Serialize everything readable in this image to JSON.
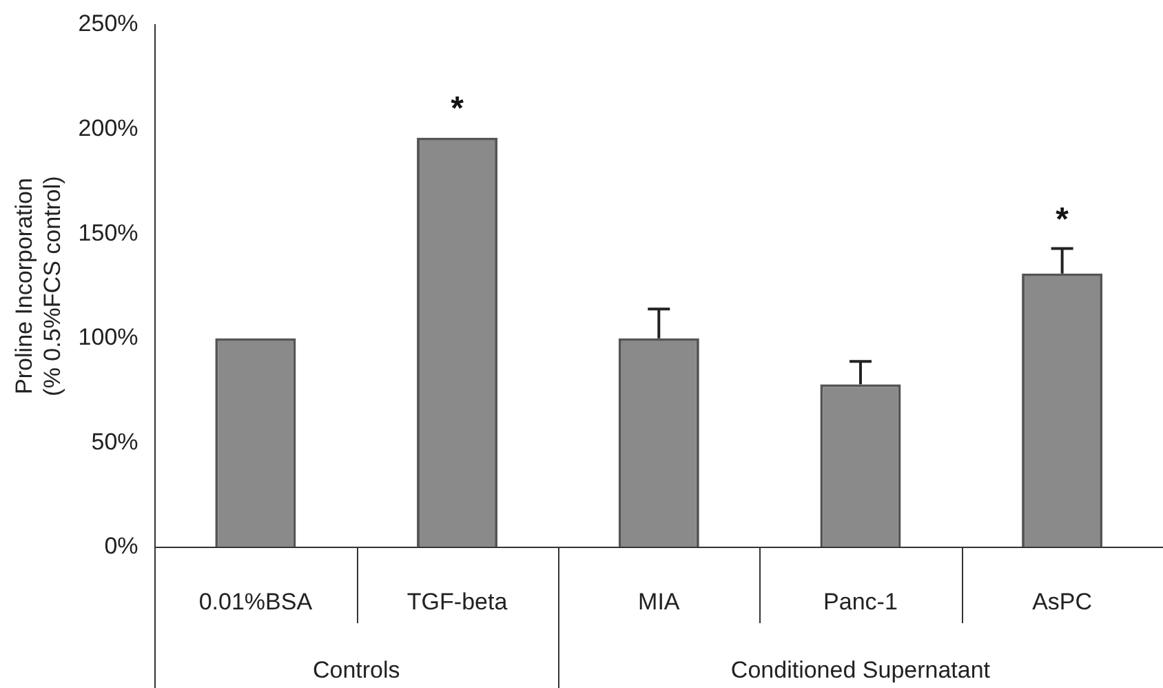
{
  "chart_data": {
    "type": "bar",
    "ylabel": "Proline Incorporation\n(% 0.5%FCS control)",
    "categories": [
      "0.01%BSA",
      "TGF-beta",
      "MIA",
      "Panc-1",
      "AsPC"
    ],
    "values": [
      100,
      196,
      100,
      78,
      131
    ],
    "errors": [
      null,
      null,
      14,
      11,
      12
    ],
    "color": "#8a8a8a",
    "ylim": [
      0,
      250
    ],
    "yticks": [
      {
        "value": 0,
        "label": "0%"
      },
      {
        "value": 50,
        "label": "50%"
      },
      {
        "value": 100,
        "label": "100%"
      },
      {
        "value": 150,
        "label": "150%"
      },
      {
        "value": 200,
        "label": "200%"
      },
      {
        "value": 250,
        "label": "250%"
      }
    ],
    "grid": false,
    "legend": false,
    "value_labels": [
      null,
      "*",
      null,
      null,
      "*"
    ],
    "annotations": [
      "Controls",
      "Conditioned Supernatant"
    ]
  }
}
